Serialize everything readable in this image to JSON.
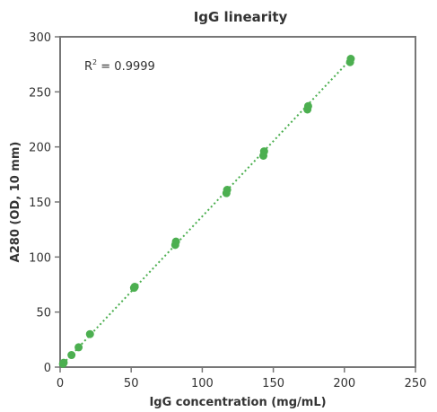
{
  "chart_data": {
    "type": "scatter",
    "title": "IgG linearity",
    "xlabel": "IgG concentration (mg/mL)",
    "ylabel": "A280 (OD, 10 mm)",
    "xlim": [
      0,
      250
    ],
    "ylim": [
      0,
      300
    ],
    "xticks": [
      0,
      50,
      100,
      150,
      200,
      250
    ],
    "yticks": [
      0,
      50,
      100,
      150,
      200,
      250,
      300
    ],
    "grid": false,
    "annotation": {
      "r_label": "R",
      "r_sup": "2",
      "r_value": " = 0.9999"
    },
    "trendline": {
      "style": "dotted",
      "x": [
        2,
        204
      ],
      "y": [
        3,
        279
      ]
    },
    "series": [
      {
        "x": [
          2,
          2.5,
          8,
          13,
          21,
          52,
          52.5,
          81,
          81.5,
          117,
          117.5,
          143,
          143.5,
          174,
          174.5,
          204,
          204.5
        ],
        "y": [
          3,
          4,
          11,
          18,
          30,
          72,
          73,
          111,
          114,
          158,
          161,
          192,
          196,
          234,
          237,
          277,
          280
        ]
      }
    ],
    "colors": {
      "points": "#4caf50",
      "trendline": "#4caf50",
      "frame": "#777777",
      "text": "#333333"
    }
  }
}
